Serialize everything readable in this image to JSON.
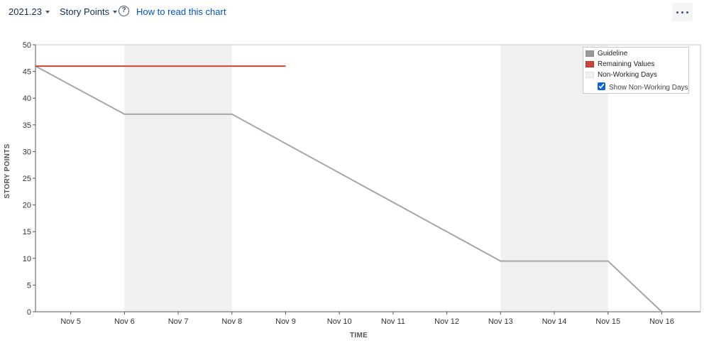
{
  "toolbar": {
    "sprint_select": "2021.23",
    "estimate_select": "Story Points",
    "help_link": "How to read this chart",
    "help_icon": "question-circle-icon",
    "more_icon": "more-horizontal-icon"
  },
  "legend": {
    "items": [
      {
        "label": "Guideline",
        "color": "#999999"
      },
      {
        "label": "Remaining Values",
        "color": "#d04437"
      },
      {
        "label": "Non-Working Days",
        "color": "#f0f0f0"
      }
    ],
    "checkbox_label": "Show Non-Working Days",
    "checkbox_checked": true
  },
  "chart_data": {
    "type": "line",
    "xlabel": "TIME",
    "ylabel": "STORY POINTS",
    "ylim": [
      0,
      50
    ],
    "yticks": [
      0,
      5,
      10,
      15,
      20,
      25,
      30,
      35,
      40,
      45,
      50
    ],
    "xlim": [
      "Nov 4",
      "Nov 16"
    ],
    "x_tick_labels": [
      "Nov 5",
      "Nov 6",
      "Nov 7",
      "Nov 8",
      "Nov 9",
      "Nov 10",
      "Nov 11",
      "Nov 12",
      "Nov 13",
      "Nov 14",
      "Nov 15",
      "Nov 16"
    ],
    "grid": false,
    "legend_position": "top-right",
    "non_working_days": [
      [
        "Nov 6",
        "Nov 8"
      ],
      [
        "Nov 13",
        "Nov 15"
      ]
    ],
    "series": [
      {
        "name": "Guideline",
        "color": "#a6a6a6",
        "points": [
          {
            "x": "Nov 4",
            "y": 46
          },
          {
            "x": "Nov 6",
            "y": 37
          },
          {
            "x": "Nov 8",
            "y": 37
          },
          {
            "x": "Nov 13",
            "y": 9.5
          },
          {
            "x": "Nov 15",
            "y": 9.5
          },
          {
            "x": "Nov 16",
            "y": 0
          }
        ]
      },
      {
        "name": "Remaining Values",
        "color": "#d04437",
        "points": [
          {
            "x": "Nov 4",
            "y": 46
          },
          {
            "x": "Nov 9",
            "y": 46
          }
        ]
      }
    ]
  }
}
